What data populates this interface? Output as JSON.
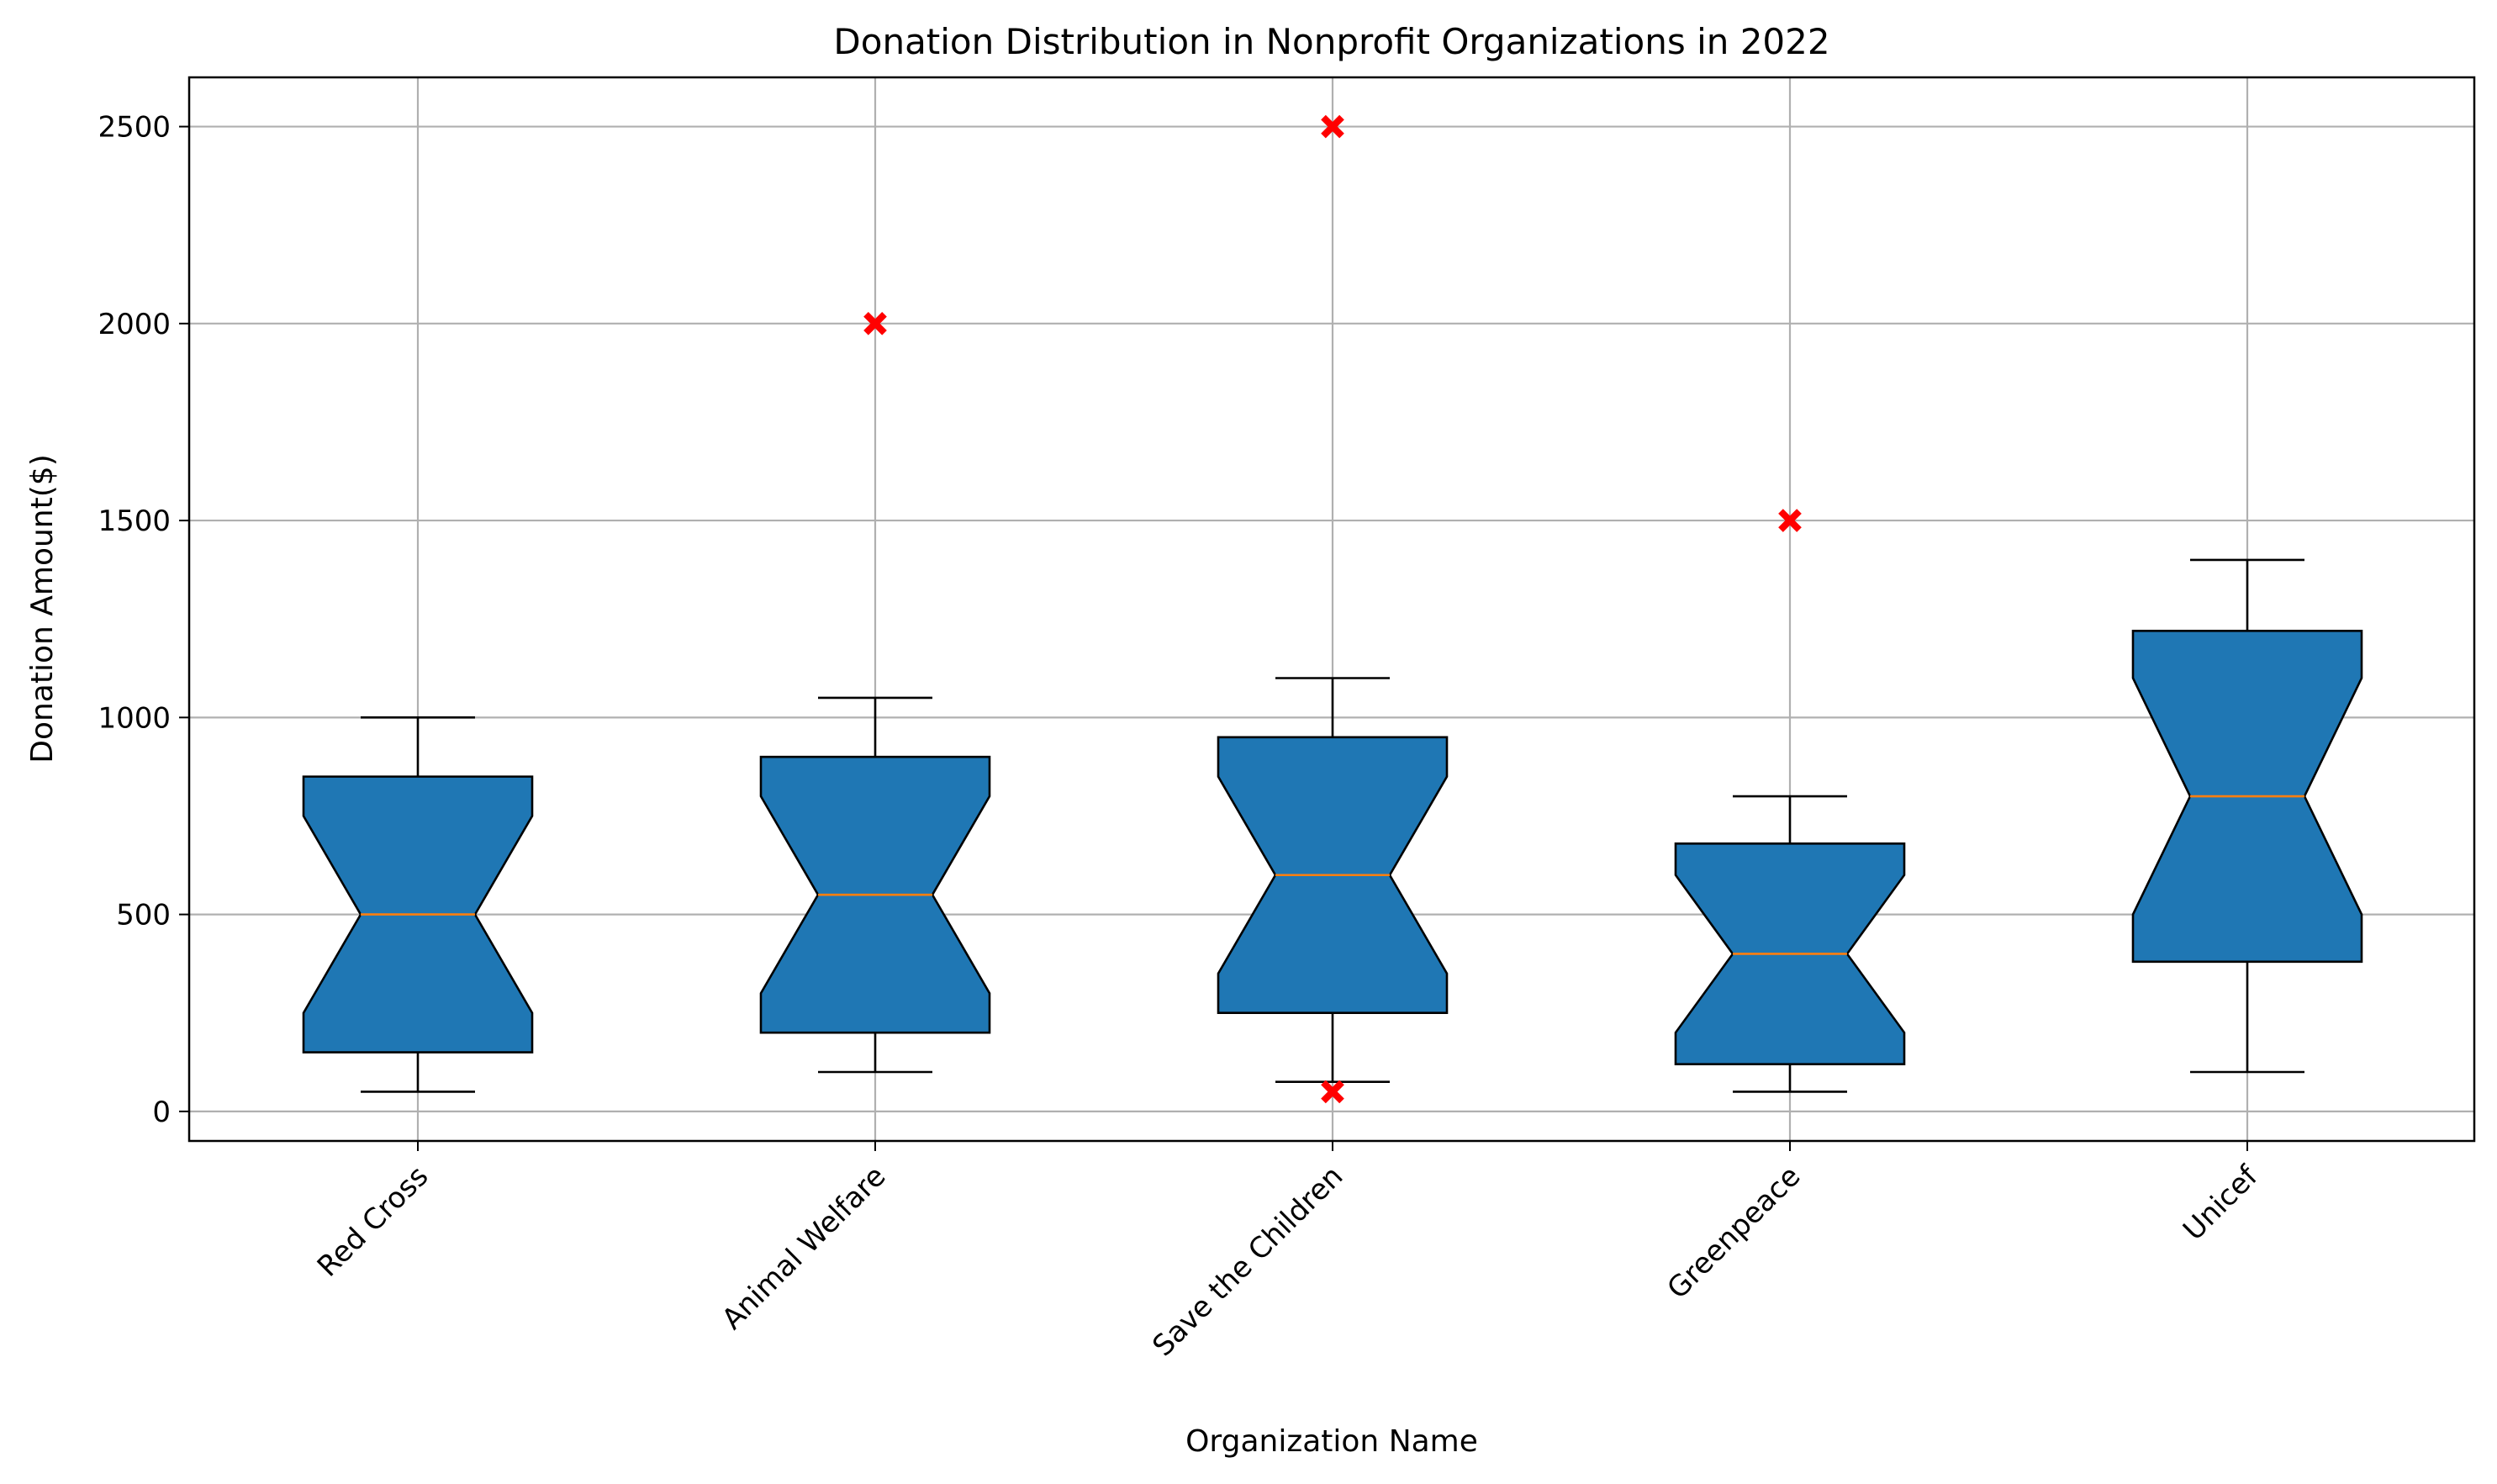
{
  "chart_data": {
    "type": "boxplot",
    "title": "Donation Distribution in Nonprofit Organizations in 2022",
    "xlabel": "Organization Name",
    "ylabel": "Donation Amount($)",
    "ylim": [
      -75,
      2625
    ],
    "yticks": [
      0,
      500,
      1000,
      1500,
      2000,
      2500
    ],
    "grid": true,
    "notched": true,
    "categories": [
      "Red Cross",
      "Animal Welfare",
      "Save the Children",
      "Greenpeace",
      "Unicef"
    ],
    "boxes": [
      {
        "min": 50,
        "q1": 250,
        "median": 500,
        "q3": 750,
        "max": 1000,
        "notch_low": 150,
        "notch_high": 850,
        "outliers": []
      },
      {
        "min": 100,
        "q1": 300,
        "median": 550,
        "q3": 800,
        "max": 1050,
        "notch_low": 200,
        "notch_high": 900,
        "outliers": [
          2000
        ]
      },
      {
        "min": 75,
        "q1": 350,
        "median": 600,
        "q3": 850,
        "max": 1100,
        "notch_low": 250,
        "notch_high": 950,
        "outliers": [
          2500,
          50
        ]
      },
      {
        "min": 50,
        "q1": 200,
        "median": 400,
        "q3": 600,
        "max": 800,
        "notch_low": 120,
        "notch_high": 680,
        "outliers": [
          1500
        ]
      },
      {
        "min": 100,
        "q1": 500,
        "median": 800,
        "q3": 1100,
        "max": 1400,
        "notch_low": 380,
        "notch_high": 1220,
        "outliers": []
      }
    ],
    "colors": {
      "box_fill": "#1f77b4",
      "median": "#ff7f0e",
      "outlier": "#ff0000",
      "grid": "#b0b0b0",
      "edge": "#000000"
    }
  }
}
